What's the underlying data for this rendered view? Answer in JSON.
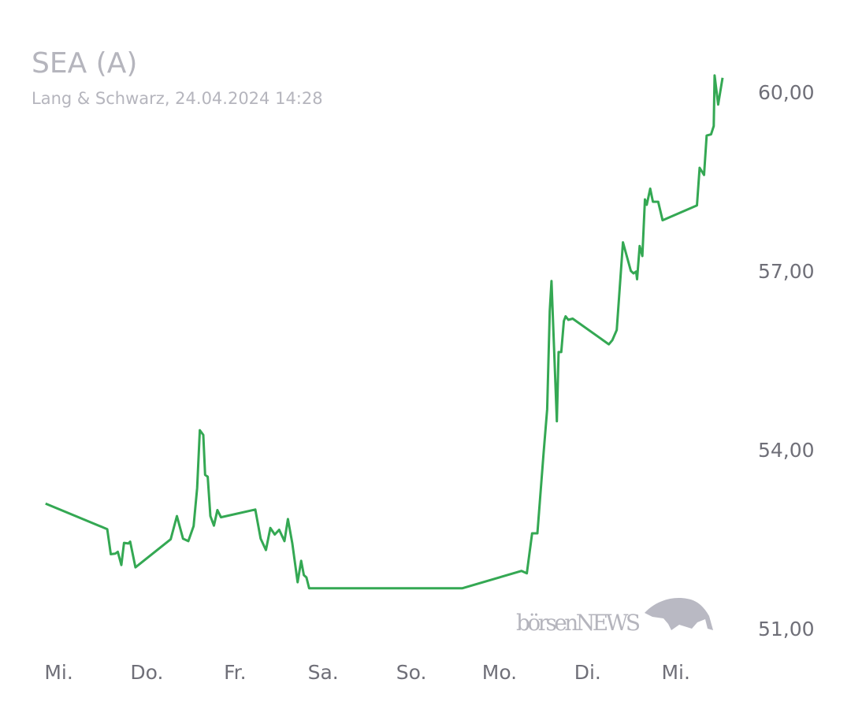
{
  "chart_data": {
    "type": "line",
    "title": "SEA (A)",
    "subtitle": "Lang & Schwarz, 24.04.2024 14:28",
    "watermark": "börsenNEWS",
    "xlim": [
      -0.3,
      7.7
    ],
    "xticks": [
      {
        "value": 0,
        "label": "Mi."
      },
      {
        "value": 1,
        "label": "Do."
      },
      {
        "value": 2,
        "label": "Fr."
      },
      {
        "value": 3,
        "label": "Sa."
      },
      {
        "value": 4,
        "label": "So."
      },
      {
        "value": 5,
        "label": "Mo."
      },
      {
        "value": 6,
        "label": "Di."
      },
      {
        "value": 7,
        "label": "Mi."
      }
    ],
    "ylim": [
      50.5,
      60.5
    ],
    "yticks": [
      {
        "value": 51,
        "label": "51,00"
      },
      {
        "value": 54,
        "label": "54,00"
      },
      {
        "value": 57,
        "label": "57,00"
      },
      {
        "value": 60,
        "label": "60,00"
      }
    ],
    "grid": false,
    "series": [
      {
        "color": "#34a853",
        "x": [
          -0.15,
          0.55,
          0.59,
          0.64,
          0.67,
          0.71,
          0.74,
          0.79,
          0.81,
          0.87,
          1.27,
          1.34,
          1.41,
          1.47,
          1.53,
          1.57,
          1.6,
          1.64,
          1.66,
          1.69,
          1.72,
          1.76,
          1.8,
          1.84,
          2.23,
          2.29,
          2.35,
          2.4,
          2.45,
          2.5,
          2.56,
          2.6,
          2.65,
          2.71,
          2.75,
          2.78,
          2.81,
          2.84,
          4.58,
          5.25,
          5.31,
          5.37,
          5.43,
          5.5,
          5.54,
          5.57,
          5.59,
          5.65,
          5.67,
          5.7,
          5.73,
          5.75,
          5.78,
          5.83,
          6.24,
          6.28,
          6.33,
          6.4,
          6.49,
          6.52,
          6.55,
          6.56,
          6.59,
          6.62,
          6.65,
          6.67,
          6.71,
          6.74,
          6.8,
          6.85,
          7.24,
          7.27,
          7.32,
          7.35,
          7.4,
          7.43,
          7.44,
          7.48,
          7.53
        ],
        "values": [
          53.1,
          52.67,
          52.25,
          52.26,
          52.29,
          52.07,
          52.44,
          52.43,
          52.46,
          52.03,
          52.5,
          52.89,
          52.51,
          52.47,
          52.72,
          53.36,
          54.33,
          54.25,
          53.58,
          53.55,
          52.89,
          52.73,
          52.99,
          52.87,
          53.0,
          52.51,
          52.32,
          52.69,
          52.58,
          52.66,
          52.47,
          52.84,
          52.43,
          51.78,
          52.14,
          51.9,
          51.86,
          51.68,
          51.68,
          51.97,
          51.93,
          52.6,
          52.6,
          53.95,
          54.68,
          56.33,
          56.83,
          54.48,
          55.64,
          55.64,
          56.16,
          56.24,
          56.18,
          56.2,
          55.77,
          55.84,
          56.01,
          57.48,
          57.0,
          56.96,
          56.99,
          56.86,
          57.42,
          57.25,
          58.2,
          58.11,
          58.38,
          58.16,
          58.16,
          57.85,
          58.1,
          58.73,
          58.61,
          59.27,
          59.29,
          59.43,
          60.28,
          59.79,
          60.24
        ]
      }
    ]
  }
}
